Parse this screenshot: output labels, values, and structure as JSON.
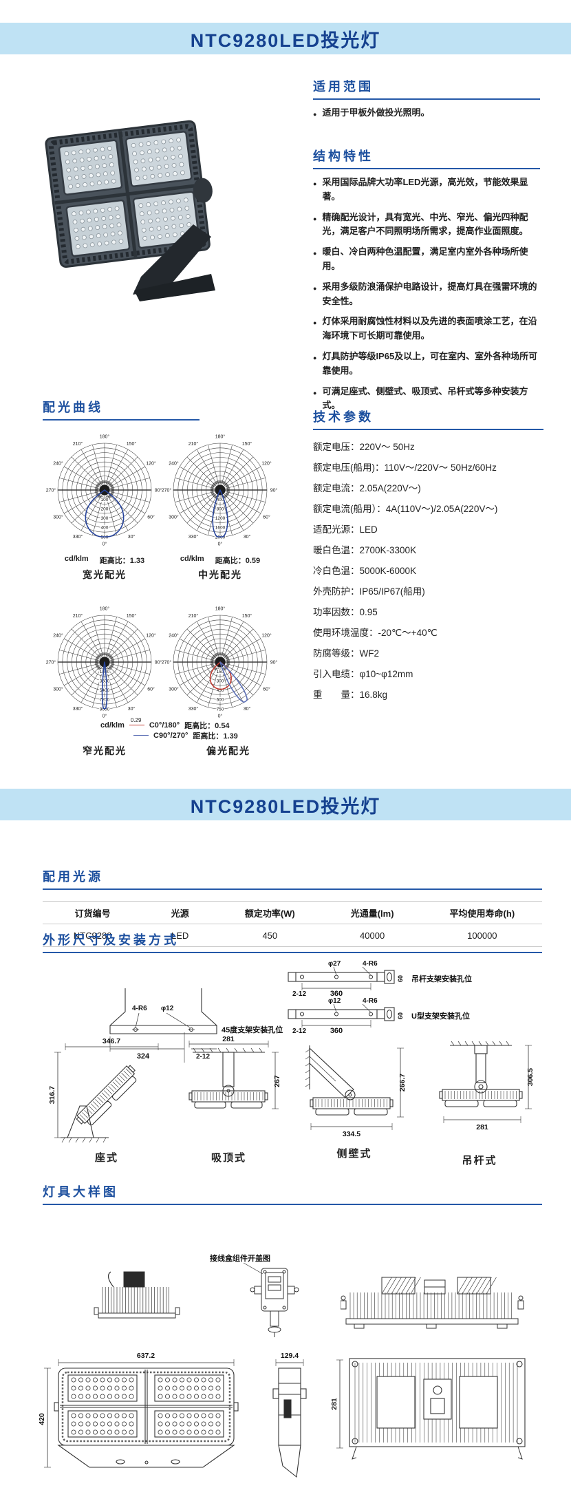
{
  "colors": {
    "header_bg": "#bfe2f4",
    "title_blue": "#15418f",
    "section_blue": "#1c4f9e",
    "rule_blue": "#2458a8",
    "curve_blue": "#27449c",
    "curve_red": "#c0392f"
  },
  "page": {
    "title1": "NTC9280LED投光灯",
    "title2": "NTC9280LED投光灯"
  },
  "sections": {
    "scope": {
      "title": "适用范围",
      "bullets": [
        "适用于甲板外做投光照明。"
      ]
    },
    "features": {
      "title": "结构特性",
      "bullets": [
        "采用国际品牌大功率LED光源，高光效，节能效果显著。",
        "精确配光设计，具有宽光、中光、窄光、偏光四种配光，满足客户不同照明场所需求，提高作业面照度。",
        "暖白、冷白两种色温配置，满足室内室外各种场所使用。",
        "采用多级防浪涌保护电路设计，提高灯具在强雷环境的安全性。",
        "灯体采用耐腐蚀性材料以及先进的表面喷涂工艺，在沿海环境下可长期可靠使用。",
        "灯具防护等级IP65及以上，可在室内、室外各种场所可靠使用。",
        "可满足座式、侧壁式、吸顶式、吊杆式等多种安装方式。"
      ]
    },
    "curves": {
      "title": "配光曲线"
    },
    "params": {
      "title": "技术参数",
      "items": [
        "额定电压：220V～ 50Hz",
        "额定电压(船用)：110V～/220V～  50Hz/60Hz",
        "额定电流：2.05A(220V～)",
        "额定电流(船用）：4A(110V～)/2.05A(220V～)",
        "适配光源：LED",
        "暖白色温：2700K-3300K",
        "冷白色温：5000K-6000K",
        "外壳防护：IP65/IP67(船用)",
        "功率因数：0.95",
        "使用环境温度：-20℃～+40℃",
        "防腐等级：WF2",
        "引入电缆：φ10~φ12mm",
        "重　　量：16.8kg"
      ]
    },
    "light_source": {
      "title": "配用光源",
      "table": {
        "headers": [
          "订货编号",
          "光源",
          "额定功率(W)",
          "光通量(lm)",
          "平均使用寿命(h)"
        ],
        "rows": [
          [
            "NTC9280",
            "LED",
            "450",
            "40000",
            "100000"
          ]
        ]
      }
    },
    "dims": {
      "title": "外形尺寸及安装方式",
      "bracket45": {
        "label": "45度支架安装孔位",
        "r": "4-R6",
        "dia": "φ12",
        "len": "324",
        "holes": "2-12"
      },
      "pole_bracket": {
        "label": "吊杆支架安装孔位",
        "dia": "φ27",
        "r": "4-R6",
        "len": "360",
        "holes": "2-12",
        "end": "60"
      },
      "u_bracket": {
        "label": "U型支架安装孔位",
        "dia": "φ12",
        "r": "4-R6",
        "len": "360",
        "holes": "2-12",
        "end": "60"
      },
      "mountings": [
        {
          "label": "座式",
          "w": "346.7",
          "h": "316.7"
        },
        {
          "label": "吸顶式",
          "w": "281",
          "h": "267"
        },
        {
          "label": "侧壁式",
          "w": "334.5",
          "h": "266.7"
        },
        {
          "label": "吊杆式",
          "w": "281",
          "h": "306.5"
        }
      ]
    },
    "detail": {
      "title": "灯具大样图",
      "junction_label": "接线盒组件开盖图",
      "front_w": "637.2",
      "front_h": "420",
      "side_w": "129.4",
      "back_h": "281"
    }
  },
  "chart_data": [
    {
      "type": "polar",
      "name": "宽光配光",
      "unit": "cd/klm",
      "ratio_label": "距高比：1.33",
      "angle_labels": [
        "0°",
        "30°",
        "60°",
        "90°",
        "120°",
        "150°",
        "180°",
        "210°",
        "240°",
        "270°",
        "300°",
        "330°"
      ],
      "ring_labels": [
        "100",
        "200",
        "300",
        "400",
        "500"
      ],
      "series": [
        {
          "name": "C0°/180°",
          "color": "#27449c",
          "peak": 505,
          "half_width_deg": 54,
          "tilt_deg": 0,
          "exp": 0.55
        }
      ]
    },
    {
      "type": "polar",
      "name": "中光配光",
      "unit": "cd/klm",
      "ratio_label": "距高比：0.59",
      "angle_labels": [
        "0°",
        "30°",
        "60°",
        "90°",
        "120°",
        "150°",
        "180°",
        "210°",
        "240°",
        "270°",
        "300°",
        "330°"
      ],
      "ring_labels": [
        "400",
        "800",
        "1200",
        "1600",
        "2000"
      ],
      "series": [
        {
          "name": "C0°/180°",
          "color": "#27449c",
          "peak": 2060,
          "half_width_deg": 25,
          "tilt_deg": 0,
          "exp": 1
        }
      ]
    },
    {
      "type": "polar",
      "name": "窄光配光",
      "unit": "cd/klm",
      "angle_labels": [
        "0°",
        "30°",
        "60°",
        "90°",
        "120°",
        "150°",
        "180°",
        "210°",
        "240°",
        "270°",
        "300°",
        "330°"
      ],
      "ring_labels": [
        "1800",
        "3600",
        "5400",
        "7200",
        "9000"
      ],
      "series": [
        {
          "name": "C90°/270°",
          "color": "#27449c",
          "peak": 9300,
          "half_width_deg": 8,
          "tilt_deg": 0,
          "exp": 1
        }
      ]
    },
    {
      "type": "polar",
      "name": "偏光配光",
      "unit": "cd/klm",
      "angle_labels": [
        "0°",
        "30°",
        "60°",
        "90°",
        "120°",
        "150°",
        "180°",
        "210°",
        "240°",
        "270°",
        "300°",
        "330°"
      ],
      "ring_labels": [
        "150",
        "300",
        "450",
        "600",
        "750"
      ],
      "series": [
        {
          "name": "C0°/180°",
          "ratio_label": "距高比：0.54",
          "note": "0.29",
          "color": "#c0392f",
          "peak": 435,
          "half_width_deg": 50,
          "tilt_deg": 2,
          "exp": 0.5
        },
        {
          "name": "C90°/270°",
          "ratio_label": "距高比：1.39",
          "color": "#5b6fb5",
          "peak": 770,
          "half_width_deg": 16,
          "tilt_deg": 33,
          "exp": 1
        }
      ]
    }
  ]
}
